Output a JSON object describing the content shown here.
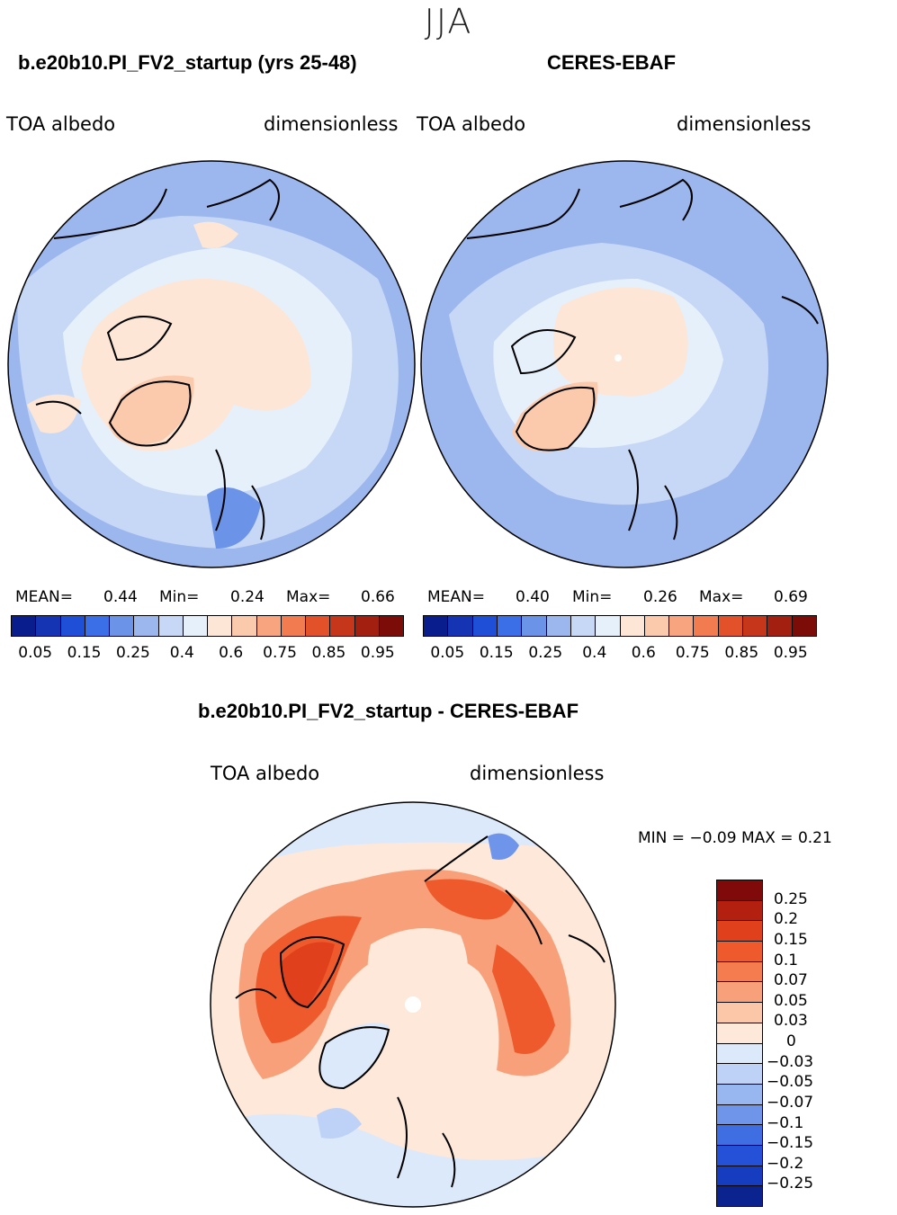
{
  "season": "JJA",
  "panels": [
    {
      "title": "b.e20b10.PI_FV2_startup (yrs 25-48)",
      "var": "TOA  albedo",
      "units": "dimensionless",
      "mean_label": "MEAN=",
      "mean": "0.44",
      "min_label": "Min=",
      "min": "0.24",
      "max_label": "Max=",
      "max": "0.66"
    },
    {
      "title": "CERES-EBAF",
      "var": "TOA  albedo",
      "units": "dimensionless",
      "mean_label": "MEAN=",
      "mean": "0.40",
      "min_label": "Min=",
      "min": "0.26",
      "max_label": "Max=",
      "max": "0.69"
    }
  ],
  "colorbar_top": {
    "colors": [
      "#0a1d8c",
      "#1434b4",
      "#1f4fd6",
      "#3a6fe8",
      "#6b93e8",
      "#9cb6ee",
      "#c6d8f6",
      "#e6f0fb",
      "#fde6d6",
      "#fbc9ac",
      "#f7a47f",
      "#f27b50",
      "#e3512b",
      "#c6361a",
      "#a31f10",
      "#7b0c08"
    ],
    "ticks": [
      "0.05",
      "0.15",
      "0.25",
      "0.4",
      "0.6",
      "0.75",
      "0.85",
      "0.95"
    ]
  },
  "diff": {
    "title": "b.e20b10.PI_FV2_startup - CERES-EBAF",
    "var": "TOA  albedo",
    "units": "dimensionless",
    "minmax_text": "MIN =   −0.09  MAX =     0.21",
    "colors": [
      "#800a0a",
      "#b42010",
      "#e0401c",
      "#ee5a2c",
      "#f47c4e",
      "#f8a07a",
      "#fbc7a8",
      "#fde8da",
      "#dce9fb",
      "#bdd2f6",
      "#98b6f0",
      "#6e95ea",
      "#3f6ee2",
      "#2451d8",
      "#163cc0",
      "#0a238f"
    ],
    "ticks": [
      "0.25",
      "0.2",
      "0.15",
      "0.1",
      "0.07",
      "0.05",
      "0.03",
      "0",
      "−0.03",
      "−0.05",
      "−0.07",
      "−0.1",
      "−0.15",
      "−0.2",
      "−0.25"
    ]
  }
}
